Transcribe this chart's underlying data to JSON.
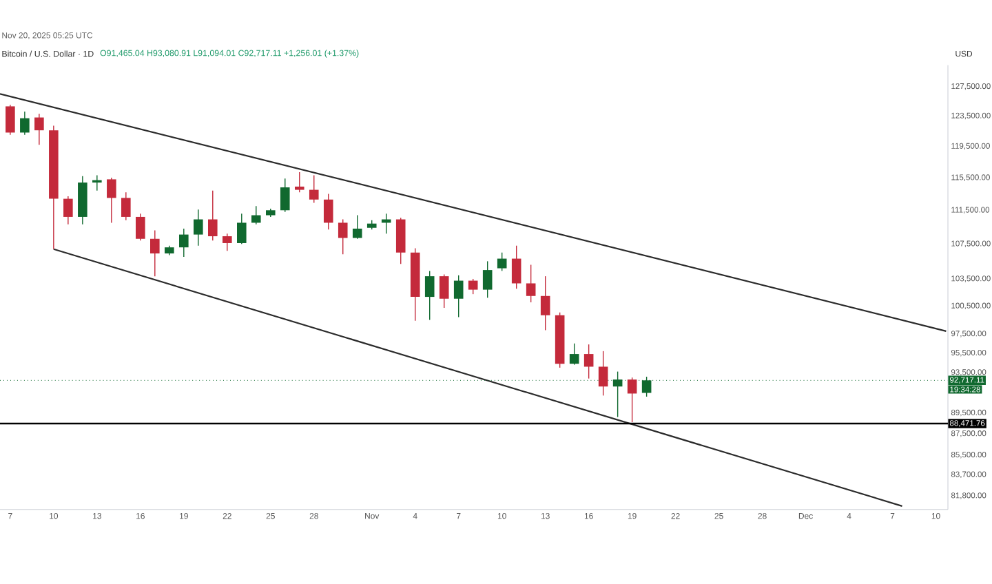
{
  "chart_data": {
    "type": "candlestick",
    "title": "Bitcoin / U.S. Dollar · 1D",
    "subtitle": "O91,465.04 H93,080.91 L91,094.01 C92,717.11 +1,256.01 (+1.37%)",
    "ylabel": "USD",
    "annotations": [
      "Nov 20, 2025 05:25 UTC",
      "19:34:28"
    ],
    "x": [
      "2025-10-07",
      "2025-10-08",
      "2025-10-09",
      "2025-10-10",
      "2025-10-11",
      "2025-10-12",
      "2025-10-13",
      "2025-10-14",
      "2025-10-15",
      "2025-10-16",
      "2025-10-17",
      "2025-10-18",
      "2025-10-19",
      "2025-10-20",
      "2025-10-21",
      "2025-10-22",
      "2025-10-23",
      "2025-10-24",
      "2025-10-25",
      "2025-10-26",
      "2025-10-27",
      "2025-10-28",
      "2025-10-29",
      "2025-10-30",
      "2025-10-31",
      "2025-11-01",
      "2025-11-02",
      "2025-11-03",
      "2025-11-04",
      "2025-11-05",
      "2025-11-06",
      "2025-11-07",
      "2025-11-08",
      "2025-11-09",
      "2025-11-10",
      "2025-11-11",
      "2025-11-12",
      "2025-11-13",
      "2025-11-14",
      "2025-11-15",
      "2025-11-16",
      "2025-11-17",
      "2025-11-18",
      "2025-11-19",
      "2025-11-20"
    ],
    "ohlc": [
      [
        124800,
        125000,
        121000,
        121300
      ],
      [
        121300,
        124100,
        121000,
        123200
      ],
      [
        123300,
        123800,
        119700,
        121600
      ],
      [
        121600,
        122200,
        106900,
        112900
      ],
      [
        112900,
        113200,
        109800,
        110700
      ],
      [
        110700,
        115700,
        109800,
        114900
      ],
      [
        114900,
        115800,
        113900,
        115200
      ],
      [
        115300,
        115500,
        110000,
        113000
      ],
      [
        113000,
        113700,
        110300,
        110700
      ],
      [
        110700,
        111100,
        107900,
        108100
      ],
      [
        108100,
        109100,
        103800,
        106400
      ],
      [
        106400,
        107300,
        106200,
        107100
      ],
      [
        107100,
        109300,
        106000,
        108600
      ],
      [
        108600,
        111600,
        107300,
        110400
      ],
      [
        110400,
        113900,
        107900,
        108400
      ],
      [
        108400,
        108700,
        106700,
        107600
      ],
      [
        107600,
        111100,
        107500,
        110000
      ],
      [
        110000,
        112000,
        109800,
        110900
      ],
      [
        110900,
        111700,
        110700,
        111500
      ],
      [
        111500,
        115400,
        111300,
        114300
      ],
      [
        114400,
        116200,
        113700,
        114000
      ],
      [
        114000,
        115800,
        112400,
        112800
      ],
      [
        112800,
        113500,
        109200,
        110000
      ],
      [
        110000,
        110400,
        106300,
        108200
      ],
      [
        108200,
        110900,
        108100,
        109300
      ],
      [
        109400,
        110300,
        109200,
        109900
      ],
      [
        110000,
        111100,
        108700,
        110400
      ],
      [
        110400,
        110600,
        105200,
        106500
      ],
      [
        106500,
        107000,
        98900,
        101500
      ],
      [
        101500,
        104400,
        99000,
        103800
      ],
      [
        103800,
        104000,
        100300,
        101300
      ],
      [
        101300,
        103900,
        99300,
        103300
      ],
      [
        103300,
        103500,
        101800,
        102300
      ],
      [
        102300,
        105500,
        101400,
        104500
      ],
      [
        104700,
        106500,
        104400,
        105800
      ],
      [
        105800,
        107300,
        102400,
        103000
      ],
      [
        103000,
        105100,
        100900,
        101600
      ],
      [
        101600,
        103800,
        97900,
        99500
      ],
      [
        99500,
        99800,
        94000,
        94400
      ],
      [
        94400,
        96500,
        94300,
        95400
      ],
      [
        95400,
        96400,
        92900,
        94100
      ],
      [
        94100,
        95700,
        91200,
        92100
      ],
      [
        92100,
        93600,
        89100,
        92800
      ],
      [
        92800,
        93000,
        88600,
        91400
      ],
      [
        91465.04,
        93080.91,
        91094.01,
        92717.11
      ]
    ],
    "colors": [
      "#c42a3b",
      "#10692f",
      "#c42a3b",
      "#c42a3b",
      "#c42a3b",
      "#10692f",
      "#10692f",
      "#c42a3b",
      "#c42a3b",
      "#c42a3b",
      "#c42a3b",
      "#10692f",
      "#10692f",
      "#10692f",
      "#c42a3b",
      "#c42a3b",
      "#10692f",
      "#10692f",
      "#10692f",
      "#10692f",
      "#c42a3b",
      "#c42a3b",
      "#c42a3b",
      "#c42a3b",
      "#10692f",
      "#10692f",
      "#10692f",
      "#c42a3b",
      "#c42a3b",
      "#10692f",
      "#c42a3b",
      "#10692f",
      "#c42a3b",
      "#10692f",
      "#10692f",
      "#c42a3b",
      "#c42a3b",
      "#c42a3b",
      "#c42a3b",
      "#10692f",
      "#c42a3b",
      "#c42a3b",
      "#10692f",
      "#c42a3b",
      "#10692f"
    ],
    "series": [
      {
        "type": "line",
        "color": "#2b2b2b",
        "x": [
          "2025-10-06T07:00",
          "2025-12-10T17:00"
        ],
        "values": [
          126500,
          97800
        ]
      },
      {
        "type": "line",
        "color": "#2b2b2b",
        "x": [
          "2025-10-10",
          "2025-12-07T16:00"
        ],
        "values": [
          106900,
          80900
        ]
      }
    ],
    "ref_lines": [
      {
        "axis": "y",
        "value": 92717.11,
        "label": "92,717.11",
        "color": "#10692f",
        "line_style": "dotted"
      },
      {
        "axis": "y",
        "value": 88471.76,
        "label": "88,471.76",
        "color": "#000000",
        "line_style": "solid"
      }
    ],
    "log": "y",
    "xlim": [
      "2025-10-06T07:00",
      "2025-12-10T20:00"
    ],
    "ylim": [
      80600,
      130500
    ],
    "xticks": [
      {
        "value": "2025-10-07",
        "label": "7"
      },
      {
        "value": "2025-10-10",
        "label": "10"
      },
      {
        "value": "2025-10-13",
        "label": "13"
      },
      {
        "value": "2025-10-16",
        "label": "16"
      },
      {
        "value": "2025-10-19",
        "label": "19"
      },
      {
        "value": "2025-10-22",
        "label": "22"
      },
      {
        "value": "2025-10-25",
        "label": "25"
      },
      {
        "value": "2025-10-28",
        "label": "28"
      },
      {
        "value": "2025-11-01",
        "label": "Nov"
      },
      {
        "value": "2025-11-04",
        "label": "4"
      },
      {
        "value": "2025-11-07",
        "label": "7"
      },
      {
        "value": "2025-11-10",
        "label": "10"
      },
      {
        "value": "2025-11-13",
        "label": "13"
      },
      {
        "value": "2025-11-16",
        "label": "16"
      },
      {
        "value": "2025-11-19",
        "label": "19"
      },
      {
        "value": "2025-11-22",
        "label": "22"
      },
      {
        "value": "2025-11-25",
        "label": "25"
      },
      {
        "value": "2025-11-28",
        "label": "28"
      },
      {
        "value": "2025-12-01",
        "label": "Dec"
      },
      {
        "value": "2025-12-04",
        "label": "4"
      },
      {
        "value": "2025-12-07",
        "label": "7"
      },
      {
        "value": "2025-12-10",
        "label": "10"
      }
    ],
    "yticks": [
      {
        "value": 127500,
        "label": "127,500.00"
      },
      {
        "value": 123500,
        "label": "123,500.00"
      },
      {
        "value": 119500,
        "label": "119,500.00"
      },
      {
        "value": 115500,
        "label": "115,500.00"
      },
      {
        "value": 111500,
        "label": "111,500.00"
      },
      {
        "value": 107500,
        "label": "107,500.00"
      },
      {
        "value": 103500,
        "label": "103,500.00"
      },
      {
        "value": 100500,
        "label": "100,500.00"
      },
      {
        "value": 97500,
        "label": "97,500.00"
      },
      {
        "value": 95500,
        "label": "95,500.00"
      },
      {
        "value": 93500,
        "label": "93,500.00"
      },
      {
        "value": 89500,
        "label": "89,500.00"
      },
      {
        "value": 87500,
        "label": "87,500.00"
      },
      {
        "value": 85500,
        "label": "85,500.00"
      },
      {
        "value": 83700,
        "label": "83,700.00"
      },
      {
        "value": 81800,
        "label": "81,800.00"
      }
    ]
  }
}
